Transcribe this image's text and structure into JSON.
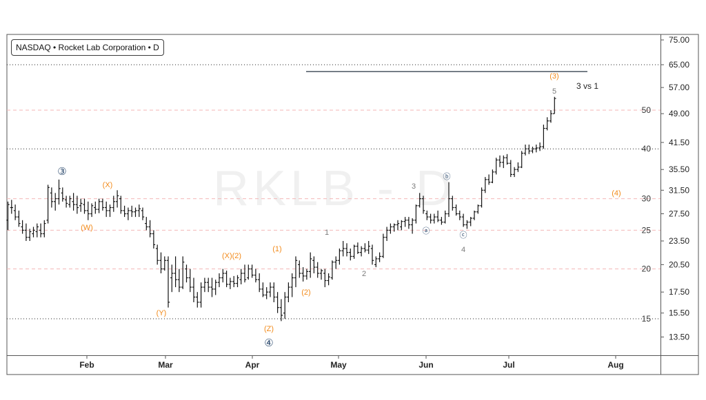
{
  "legend": {
    "text": "NASDAQ • Rocket Lab Corporation • D"
  },
  "watermark": "RKLB - D",
  "colors": {
    "orange": "#f28a1a",
    "gray": "#7a7a7a",
    "navy": "#2c4a6e",
    "pink_grid": "#f3b6b6",
    "black_grid": "#222222",
    "bar": "#111111",
    "target_line": "#4a5560"
  },
  "chart_data": {
    "type": "ohlc",
    "symbol": "RKLB",
    "yscale": "log",
    "ylim": [
      12.3,
      80
    ],
    "price_ticks": [
      "75.00",
      "65.00",
      "57.00",
      "49.00",
      "41.50",
      "35.50",
      "31.50",
      "27.50",
      "23.50",
      "20.50",
      "17.50",
      "15.50",
      "13.50"
    ],
    "x_labels": [
      "Feb",
      "Mar",
      "Apr",
      "May",
      "Jun",
      "Jul",
      "Aug"
    ],
    "ref_lines_black": [
      65,
      40,
      15
    ],
    "ref_lines_pink": [
      50,
      30,
      25,
      20
    ],
    "ref_line_labels": [
      "50",
      "40",
      "30",
      "25",
      "20",
      "15"
    ],
    "target_line_price": 62.5,
    "bars": [
      [
        26.5,
        29.5,
        25,
        29
      ],
      [
        28.5,
        29.8,
        27.5,
        28.5
      ],
      [
        28,
        29,
        26.5,
        27
      ],
      [
        27,
        28,
        25.5,
        26
      ],
      [
        25.5,
        26.5,
        24.5,
        25
      ],
      [
        25,
        26,
        23.5,
        24
      ],
      [
        24,
        25.2,
        23.5,
        24.8
      ],
      [
        24.5,
        25.5,
        24,
        25
      ],
      [
        24.8,
        26,
        24,
        25.5
      ],
      [
        25,
        26,
        24,
        24.5
      ],
      [
        24.5,
        26.5,
        24,
        26
      ],
      [
        26.5,
        32.5,
        26,
        32
      ],
      [
        31,
        32,
        28.5,
        29.5
      ],
      [
        29.5,
        31,
        28,
        30
      ],
      [
        30,
        33.5,
        29,
        31.8
      ],
      [
        31,
        32,
        29.5,
        30
      ],
      [
        29.8,
        30.5,
        28.5,
        29.2
      ],
      [
        29,
        30.5,
        28.5,
        30
      ],
      [
        29.5,
        31,
        28,
        29
      ],
      [
        29,
        30.5,
        27.5,
        28.5
      ],
      [
        28.8,
        30,
        27.8,
        29.2
      ],
      [
        29,
        30,
        27.5,
        28
      ],
      [
        28,
        29.5,
        26.5,
        27.5
      ],
      [
        27.5,
        29.2,
        27,
        28.8
      ],
      [
        28.5,
        29.5,
        27.5,
        28.2
      ],
      [
        28.2,
        30,
        27.6,
        29.5
      ],
      [
        29.5,
        30,
        28,
        28.5
      ],
      [
        28.5,
        29.5,
        27,
        28
      ],
      [
        28,
        29,
        27,
        28.5
      ],
      [
        28.5,
        30.5,
        27.8,
        29.5
      ],
      [
        29.5,
        31.5,
        28.5,
        30.5
      ],
      [
        30,
        30.5,
        27.5,
        28
      ],
      [
        28,
        28.8,
        27,
        27.5
      ],
      [
        27.5,
        28.5,
        26.5,
        28
      ],
      [
        28,
        28.8,
        27,
        27.8
      ],
      [
        27.8,
        28.5,
        27,
        28
      ],
      [
        28,
        29,
        27,
        28.3
      ],
      [
        28,
        28.5,
        26.5,
        27
      ],
      [
        26,
        27,
        25,
        25.5
      ],
      [
        25.5,
        26.5,
        24,
        24.5
      ],
      [
        24.5,
        25,
        22.5,
        23
      ],
      [
        22.5,
        23,
        20.5,
        21
      ],
      [
        21,
        22,
        19.5,
        20
      ],
      [
        20,
        21.5,
        19.8,
        21
      ],
      [
        21,
        21.5,
        16,
        16.5
      ],
      [
        19,
        20.5,
        17.5,
        19.5
      ],
      [
        19.5,
        21.5,
        18,
        18.8
      ],
      [
        18.8,
        20,
        17.5,
        18
      ],
      [
        18,
        21.5,
        17.8,
        20.8
      ],
      [
        20,
        20.5,
        18.5,
        19
      ],
      [
        19,
        20,
        17.5,
        18
      ],
      [
        18,
        19,
        16.5,
        17
      ],
      [
        17,
        17.5,
        16,
        16.5
      ],
      [
        16.5,
        18.5,
        16,
        18
      ],
      [
        18,
        19,
        17.5,
        18.5
      ],
      [
        18.5,
        19,
        17.5,
        18
      ],
      [
        18,
        19,
        17,
        17.8
      ],
      [
        17.8,
        18.8,
        17.2,
        18.5
      ],
      [
        18.5,
        19.5,
        18,
        19
      ],
      [
        19,
        20,
        18.5,
        19.5
      ],
      [
        19.5,
        19.8,
        18,
        18.3
      ],
      [
        18.3,
        19,
        17.8,
        18.6
      ],
      [
        18.6,
        19.2,
        18,
        18.4
      ],
      [
        18.4,
        19.3,
        18,
        19
      ],
      [
        18.8,
        20,
        18.3,
        19.5
      ],
      [
        19.5,
        20.5,
        18.5,
        18.8
      ],
      [
        19,
        20.5,
        18.8,
        20
      ],
      [
        20,
        20.5,
        19,
        19.3
      ],
      [
        19.3,
        20,
        18.5,
        18.8
      ],
      [
        18.8,
        19.5,
        17.5,
        17.8
      ],
      [
        17.8,
        18.5,
        17,
        17.2
      ],
      [
        17.2,
        18,
        16.8,
        17.5
      ],
      [
        17.5,
        18.5,
        17,
        18
      ],
      [
        18,
        18.5,
        16.5,
        17
      ],
      [
        17,
        17.5,
        15.5,
        16
      ],
      [
        16,
        16.8,
        14.8,
        15.3
      ],
      [
        15.5,
        17.5,
        15,
        17
      ],
      [
        17,
        18.5,
        16.5,
        18
      ],
      [
        18,
        19.5,
        17,
        19
      ],
      [
        19,
        21.5,
        18,
        21
      ],
      [
        20.5,
        21,
        19,
        19.5
      ],
      [
        19.5,
        20.2,
        18.6,
        19.2
      ],
      [
        19.2,
        20,
        18.8,
        19.7
      ],
      [
        19.7,
        22,
        19,
        21.2
      ],
      [
        21,
        21.5,
        19.5,
        20.2
      ],
      [
        20.2,
        20.8,
        19,
        19.5
      ],
      [
        19.5,
        20,
        18.8,
        19.8
      ],
      [
        19.5,
        20,
        18,
        18.7
      ],
      [
        18.7,
        19.5,
        18.2,
        19.1
      ],
      [
        19,
        21,
        18.8,
        20.8
      ],
      [
        20.8,
        21.5,
        20,
        21
      ],
      [
        21,
        22.5,
        20.5,
        22.2
      ],
      [
        22.2,
        23.5,
        21.5,
        22.5
      ],
      [
        22.5,
        23.2,
        21.5,
        22
      ],
      [
        22,
        22.5,
        21,
        21.5
      ],
      [
        21.5,
        23,
        21.2,
        22.8
      ],
      [
        22.8,
        23.3,
        21.8,
        22
      ],
      [
        22,
        22.8,
        21.5,
        22.5
      ],
      [
        22.5,
        23.2,
        22,
        22.3
      ],
      [
        22.3,
        23.5,
        21.8,
        22.8
      ],
      [
        22.5,
        23,
        20.5,
        21
      ],
      [
        20.5,
        21.5,
        20.2,
        21.2
      ],
      [
        21.2,
        22,
        20.8,
        21.5
      ],
      [
        21.5,
        24.5,
        21.3,
        24
      ],
      [
        24,
        25.5,
        23.5,
        25
      ],
      [
        25,
        26,
        24.5,
        25.5
      ],
      [
        25.5,
        26,
        24.8,
        25.8
      ],
      [
        25.8,
        26.5,
        25,
        26
      ],
      [
        25.5,
        26.5,
        25,
        26.3
      ],
      [
        26.3,
        27,
        25.5,
        26.5
      ],
      [
        26.5,
        27,
        25.2,
        25.8
      ],
      [
        25.8,
        26.8,
        24.5,
        26.5
      ],
      [
        26.5,
        29,
        26,
        28.8
      ],
      [
        28.8,
        31,
        28.5,
        30
      ],
      [
        30,
        30.5,
        27.5,
        28
      ],
      [
        27.5,
        28,
        26.5,
        27
      ],
      [
        27,
        27.5,
        26,
        26.5
      ],
      [
        26.5,
        27.5,
        26,
        27
      ],
      [
        27,
        28,
        26.2,
        26.5
      ],
      [
        26.5,
        27,
        25.8,
        26.2
      ],
      [
        26.2,
        28,
        26,
        27.5
      ],
      [
        27.5,
        33,
        27,
        30
      ],
      [
        30,
        30.5,
        28,
        28.5
      ],
      [
        28.5,
        29,
        27.2,
        27.5
      ],
      [
        27.5,
        28,
        26.5,
        27
      ],
      [
        27,
        27.5,
        25.5,
        25.8
      ],
      [
        25.8,
        26.5,
        25.2,
        26.2
      ],
      [
        26.2,
        27,
        25.6,
        26.8
      ],
      [
        26.8,
        28,
        26.5,
        27.8
      ],
      [
        27.8,
        29,
        27.5,
        28.8
      ],
      [
        28.8,
        32,
        28.5,
        31.5
      ],
      [
        31.5,
        34,
        31,
        33.5
      ],
      [
        33.5,
        34.5,
        32.5,
        33
      ],
      [
        33,
        35.5,
        32.8,
        35
      ],
      [
        35,
        38,
        34.5,
        37.5
      ],
      [
        37.5,
        38.5,
        36,
        37
      ],
      [
        37,
        38.5,
        35.8,
        38
      ],
      [
        38,
        38.8,
        36.5,
        36.8
      ],
      [
        36.8,
        37.5,
        34,
        34.5
      ],
      [
        34.5,
        36,
        34,
        35.5
      ],
      [
        35.5,
        37,
        35,
        36
      ],
      [
        36,
        39.5,
        35.8,
        39
      ],
      [
        39,
        41,
        38.5,
        40
      ],
      [
        40,
        41,
        38.8,
        39.5
      ],
      [
        39.5,
        40.5,
        39,
        40
      ],
      [
        40,
        41,
        39.2,
        40.2
      ],
      [
        40.2,
        41.5,
        39.5,
        40.5
      ],
      [
        40.5,
        46,
        40,
        45
      ],
      [
        45,
        48,
        44.5,
        47
      ],
      [
        47,
        50,
        46.5,
        49
      ],
      [
        49,
        54,
        49,
        53.5
      ]
    ],
    "wave_labels": [
      {
        "text": "③",
        "color": "navy",
        "circled": true
      },
      {
        "text": "(X)",
        "color": "orange"
      },
      {
        "text": "(W)",
        "color": "orange"
      },
      {
        "text": "(Y)",
        "color": "orange"
      },
      {
        "text": "(X)(2)",
        "color": "orange"
      },
      {
        "text": "(Z)",
        "color": "orange"
      },
      {
        "text": "④",
        "color": "navy",
        "circled": true
      },
      {
        "text": "(1)",
        "color": "orange"
      },
      {
        "text": "(2)",
        "color": "orange"
      },
      {
        "text": "1",
        "color": "gray"
      },
      {
        "text": "2",
        "color": "gray"
      },
      {
        "text": "3",
        "color": "gray"
      },
      {
        "text": "ⓑ",
        "color": "navy"
      },
      {
        "text": "ⓐ",
        "color": "navy"
      },
      {
        "text": "ⓒ",
        "color": "navy"
      },
      {
        "text": "4",
        "color": "gray"
      },
      {
        "text": "5",
        "color": "gray"
      },
      {
        "text": "(3)",
        "color": "orange"
      },
      {
        "text": "3 vs 1",
        "color": "dark"
      },
      {
        "text": "(4)",
        "color": "orange"
      }
    ]
  }
}
